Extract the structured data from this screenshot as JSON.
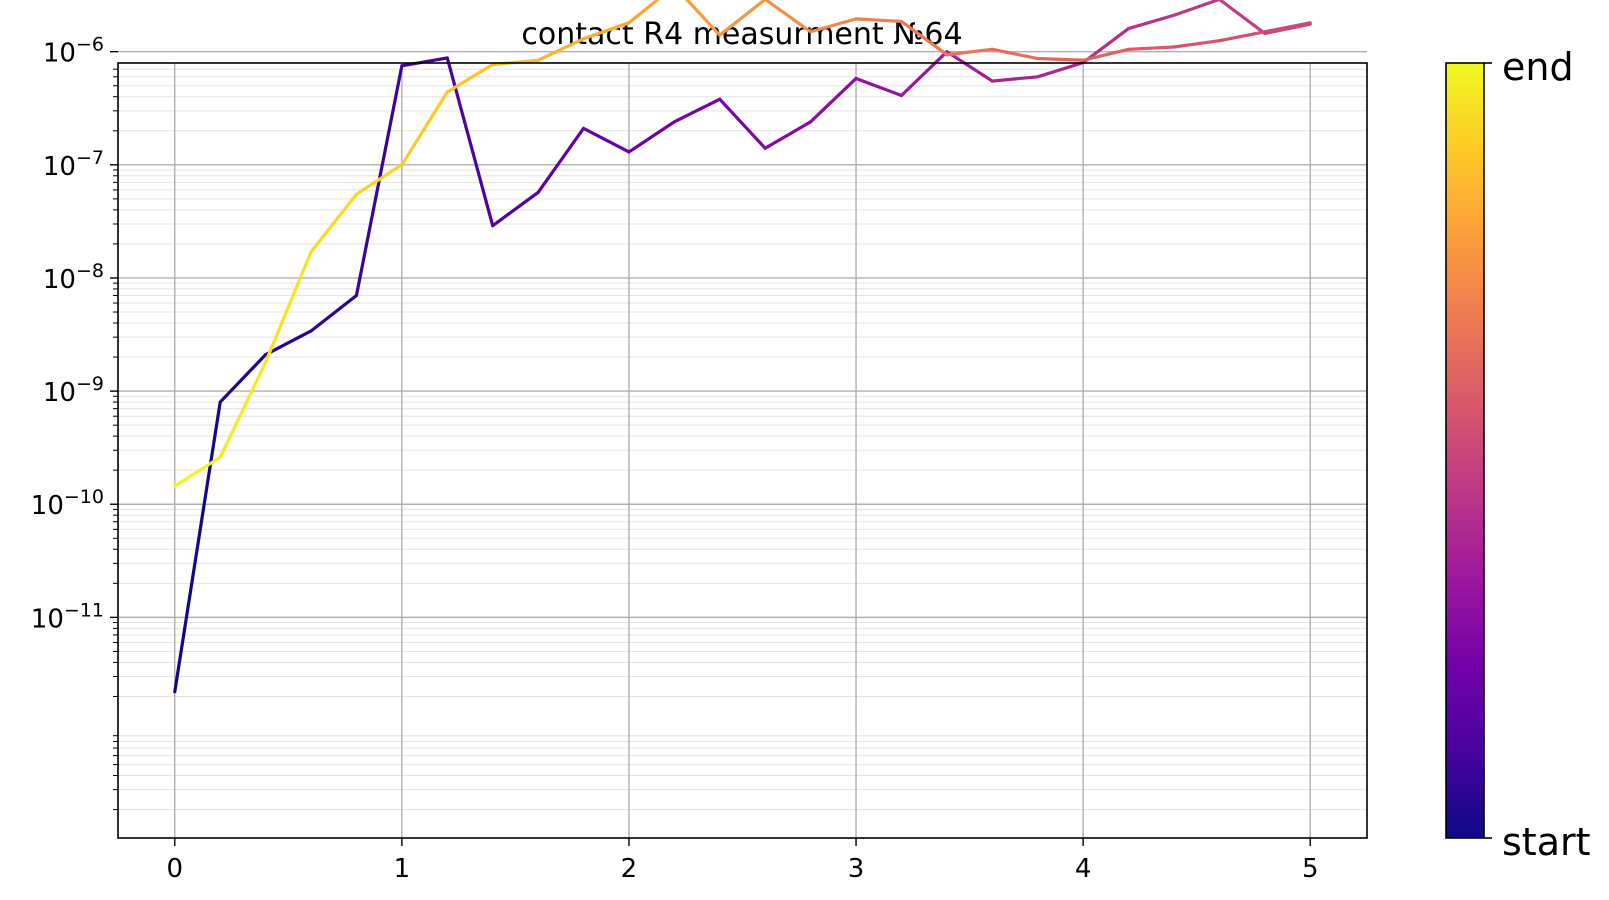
{
  "chart_data": {
    "type": "line",
    "title": "contact R4 measurment №64",
    "xlabel": "",
    "ylabel": "",
    "xlim": [
      -0.25,
      5.25
    ],
    "ylim_log10": [
      -12.95,
      -6.1
    ],
    "yscale": "log",
    "grid": true,
    "x_ticks": [
      0,
      1,
      2,
      3,
      4,
      5
    ],
    "x_tick_labels": [
      "0",
      "1",
      "2",
      "3",
      "4",
      "5"
    ],
    "y_ticks_log10": [
      -11,
      -10,
      -9,
      -8,
      -7,
      -6
    ],
    "y_tick_labels": [
      {
        "base": "10",
        "exp": "−11"
      },
      {
        "base": "10",
        "exp": "−10"
      },
      {
        "base": "10",
        "exp": "−9"
      },
      {
        "base": "10",
        "exp": "−8"
      },
      {
        "base": "10",
        "exp": "−7"
      },
      {
        "base": "10",
        "exp": "−6"
      }
    ],
    "x": [
      0,
      0.2,
      0.4,
      0.6,
      0.8,
      1.0,
      1.2,
      1.4,
      1.6,
      1.8,
      2.0,
      2.2,
      2.4,
      2.6,
      2.8,
      3.0,
      3.2,
      3.4,
      3.6,
      3.8,
      4.0,
      4.2,
      4.4,
      4.6,
      4.8,
      5.0
    ],
    "series": [
      {
        "color_position": 0.0,
        "y": [
          2.2e-12,
          8e-10,
          2.1e-09,
          3.4e-09,
          7e-09,
          7.5e-07,
          8.8e-07,
          2.9e-08,
          5.7e-08,
          2.1e-07,
          1.3e-07,
          2.4e-07,
          3.8e-07,
          1.4e-07,
          2.4e-07,
          5.8e-07,
          4.1e-07,
          1e-06,
          5.5e-07,
          6e-07,
          8e-07,
          1.6e-06,
          2.1e-06,
          2.9e-06,
          1.45e-06,
          1.75e-06
        ]
      },
      {
        "color_position": 1.0,
        "y": [
          1.45e-10,
          2.6e-10,
          1.8e-09,
          1.7e-08,
          5.5e-08,
          1e-07,
          4.4e-07,
          7.7e-07,
          8.4e-07,
          1.3e-06,
          1.8e-06,
          3.8e-06,
          1.4e-06,
          2.9e-06,
          1.5e-06,
          1.95e-06,
          1.85e-06,
          9.4e-07,
          1.05e-06,
          8.7e-07,
          8.4e-07,
          1.05e-06,
          1.1e-06,
          1.25e-06,
          1.5e-06,
          1.8e-06
        ]
      }
    ],
    "colormap": "plasma",
    "colorbar": {
      "labels": {
        "start": "start",
        "end": "end"
      },
      "stops": [
        "#0d0887",
        "#46039f",
        "#7201a8",
        "#9c179e",
        "#bd3786",
        "#d8576b",
        "#ed7953",
        "#fb9f3a",
        "#fdca26",
        "#f0f921"
      ]
    }
  }
}
